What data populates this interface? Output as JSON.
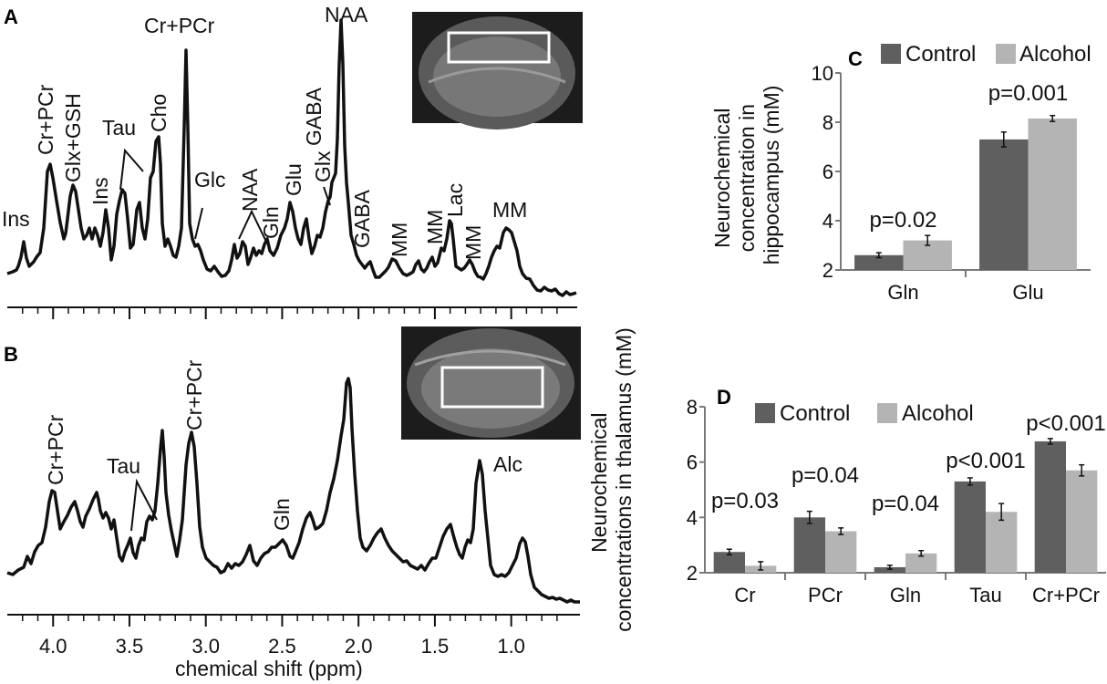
{
  "colors": {
    "control": "#5f5f5f",
    "alcohol": "#b4b4b4",
    "ink": "#111111",
    "mri_bg": "#1c1c1c",
    "roi": "#ffffff"
  },
  "spectra": {
    "panel_a_label": "A",
    "panel_b_label": "B",
    "x_axis_title": "chemical shift (ppm)",
    "x_ticks": [
      "4.0",
      "3.5",
      "3.0",
      "2.5",
      "2.0",
      "1.5",
      "1.0"
    ],
    "x_range_ppm": [
      4.3,
      0.55
    ],
    "tick_values_ppm": [
      4.0,
      3.5,
      3.0,
      2.5,
      2.0,
      1.5,
      1.0
    ],
    "panel_a_peaks": [
      "Ins",
      "Cr+PCr",
      "Glx+GSH",
      "Ins",
      "Tau",
      "Cho",
      "Cr+PCr",
      "Glc",
      "NAA",
      "Gln",
      "Glu",
      "GABA",
      "Glx",
      "NAA",
      "GABA",
      "MM",
      "MM",
      "Lac",
      "MM",
      "MM"
    ],
    "panel_b_peaks": [
      "Cr+PCr",
      "Tau",
      "Cr+PCr",
      "Gln",
      "Alc"
    ],
    "panel_a_insets": {
      "mri_icon": "brain-mri-coronal-hippocampus"
    },
    "panel_b_insets": {
      "mri_icon": "brain-mri-coronal-thalamus"
    }
  },
  "chart_data": [
    {
      "type": "bar",
      "panel": "C",
      "title": "",
      "ylabel": "Neurochemical concentration in hippocampus (mM)",
      "ylabel_lines": [
        "Neurochemical",
        "concentration in",
        "hippocampus (mM)"
      ],
      "ylim": [
        2,
        10
      ],
      "yticks": [
        "2",
        "4",
        "6",
        "8",
        "10"
      ],
      "ytick_values": [
        2,
        4,
        6,
        8,
        10
      ],
      "categories": [
        "Gln",
        "Glu"
      ],
      "series": [
        {
          "name": "Control",
          "values": [
            2.6,
            7.3
          ],
          "errors": [
            0.1,
            0.3
          ]
        },
        {
          "name": "Alcohol",
          "values": [
            3.2,
            8.15
          ],
          "errors": [
            0.2,
            0.12
          ]
        }
      ],
      "annotations": [
        "p=0.02",
        "p=0.001"
      ],
      "legend": "top"
    },
    {
      "type": "bar",
      "panel": "D",
      "title": "",
      "ylabel": "Neurochemical concentrations in thalamus (mM)",
      "ylabel_lines": [
        "Neurochemical",
        "concentrations in thalamus (mM)"
      ],
      "ylim": [
        2,
        8
      ],
      "yticks": [
        "2",
        "4",
        "6",
        "8"
      ],
      "ytick_values": [
        2,
        4,
        6,
        8
      ],
      "categories": [
        "Cr",
        "PCr",
        "Gln",
        "Tau",
        "Cr+PCr"
      ],
      "series": [
        {
          "name": "Control",
          "values": [
            2.75,
            4.0,
            2.2,
            5.3,
            6.75
          ],
          "errors": [
            0.1,
            0.22,
            0.07,
            0.13,
            0.1
          ]
        },
        {
          "name": "Alcohol",
          "values": [
            2.25,
            3.5,
            2.7,
            4.2,
            5.7
          ],
          "errors": [
            0.15,
            0.12,
            0.1,
            0.3,
            0.2
          ]
        }
      ],
      "annotations": [
        "p=0.03",
        "p=0.04",
        "p=0.04",
        "p<0.001",
        "p<0.001"
      ],
      "legend": "top"
    }
  ]
}
